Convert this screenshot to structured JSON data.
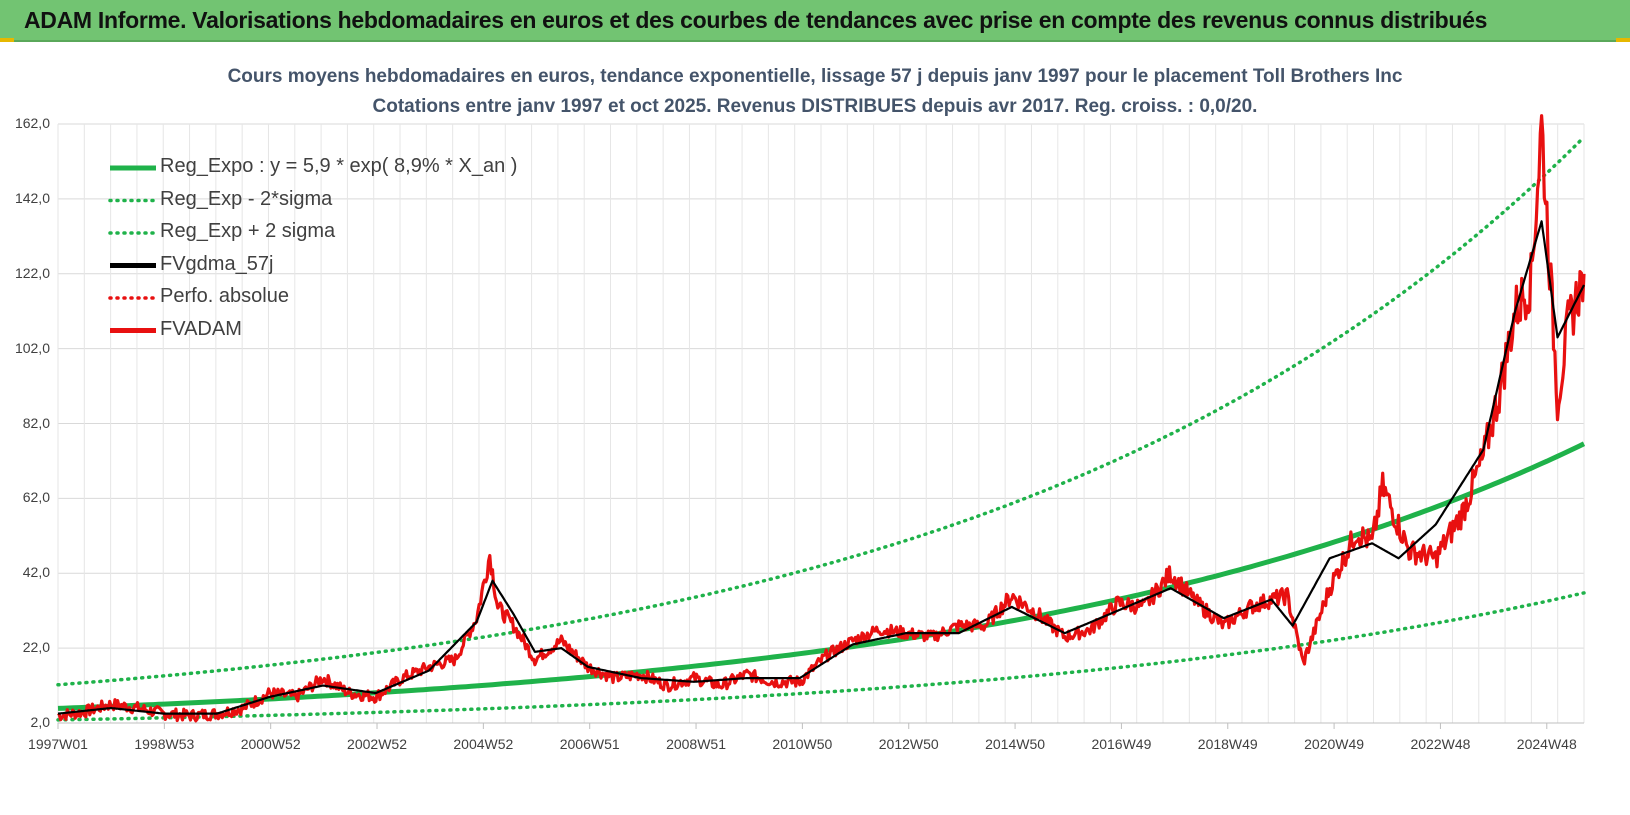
{
  "header": {
    "title": "ADAM Informe. Valorisations hebdomadaires en euros et des courbes de tendances avec prise en compte des revenus connus distribués"
  },
  "colors": {
    "header_bg": "#72c472",
    "green": "#1fb24a",
    "black": "#000000",
    "red": "#e81010"
  },
  "chart_data": {
    "type": "line",
    "title": "Cours moyens hebdomadaires en euros, tendance exponentielle, lissage 57 j depuis janv 1997 pour le placement Toll Brothers Inc",
    "subtitle": "Cotations entre janv 1997 et oct 2025. Revenus DISTRIBUES depuis avr 2017. Reg. croiss. : 0,0/20.",
    "ylim": [
      2.0,
      162.0
    ],
    "xlim": [
      1997.0,
      2025.8
    ],
    "yticks": [
      "2,0",
      "22,0",
      "42,0",
      "62,0",
      "82,0",
      "102,0",
      "122,0",
      "142,0",
      "162,0"
    ],
    "xticks": [
      "1997W01",
      "1998W53",
      "2000W52",
      "2002W52",
      "2004W52",
      "2006W51",
      "2008W51",
      "2010W50",
      "2012W50",
      "2014W50",
      "2016W49",
      "2018W49",
      "2020W49",
      "2022W48",
      "2024W48"
    ],
    "legend": [
      {
        "label": "Reg_Expo : y = 5,9 * exp( 8,9% *  X_an )",
        "style": "solid",
        "color": "#1fb24a"
      },
      {
        "label": "Reg_Exp - 2*sigma",
        "style": "dotted",
        "color": "#1fb24a"
      },
      {
        "label": "Reg_Exp + 2 sigma",
        "style": "dotted",
        "color": "#1fb24a"
      },
      {
        "label": "FVgdma_57j",
        "style": "solid",
        "color": "#000000"
      },
      {
        "label": "Perfo. absolue",
        "style": "dotted",
        "color": "#e81010"
      },
      {
        "label": "FVADAM",
        "style": "solid",
        "color": "#e81010"
      }
    ],
    "regression": {
      "a": 5.9,
      "rate": 0.089,
      "x0": 1997.0,
      "lower_factor": 0.48,
      "upper_factor": 2.07
    },
    "series": [
      {
        "name": "FVADAM",
        "x": [
          1997.0,
          1997.5,
          1998.0,
          1998.5,
          1999.0,
          1999.5,
          2000.0,
          2000.5,
          2001.0,
          2001.5,
          2002.0,
          2002.5,
          2003.0,
          2003.5,
          2004.0,
          2004.5,
          2004.9,
          2005.15,
          2005.3,
          2005.6,
          2006.0,
          2006.5,
          2007.0,
          2007.5,
          2008.0,
          2008.5,
          2009.0,
          2009.5,
          2010.0,
          2010.5,
          2011.0,
          2011.5,
          2012.0,
          2012.5,
          2013.0,
          2013.5,
          2014.0,
          2014.5,
          2015.0,
          2015.5,
          2016.0,
          2016.5,
          2017.0,
          2017.5,
          2018.0,
          2018.5,
          2019.0,
          2019.5,
          2019.9,
          2020.2,
          2020.5,
          2021.0,
          2021.5,
          2021.8,
          2022.0,
          2022.5,
          2023.0,
          2023.5,
          2023.9,
          2024.2,
          2024.5,
          2024.8,
          2025.0,
          2025.3,
          2025.5,
          2025.8
        ],
        "values": [
          4.0,
          5.0,
          7.0,
          6.0,
          4.5,
          4.0,
          4.5,
          6.0,
          10.0,
          9.0,
          14.0,
          10.0,
          9.0,
          14.0,
          17.0,
          19.0,
          30.0,
          47.0,
          33.0,
          28.0,
          19.0,
          24.0,
          17.0,
          14.0,
          15.0,
          12.0,
          14.0,
          12.0,
          15.0,
          13.0,
          13.0,
          20.0,
          24.0,
          27.0,
          26.0,
          25.0,
          28.0,
          28.0,
          36.0,
          31.0,
          25.0,
          27.0,
          34.0,
          33.0,
          42.0,
          34.0,
          28.0,
          33.0,
          35.0,
          36.0,
          18.0,
          38.0,
          53.0,
          50.0,
          65.0,
          48.0,
          46.0,
          58.0,
          73.0,
          90.0,
          112.0,
          120.0,
          162.0,
          88.0,
          108.0,
          122.0
        ]
      },
      {
        "name": "FVgdma_57j",
        "x": [
          1997.0,
          1998.0,
          1999.0,
          2000.0,
          2001.0,
          2002.0,
          2003.0,
          2004.0,
          2004.9,
          2005.2,
          2005.6,
          2006.0,
          2006.5,
          2007.0,
          2008.0,
          2009.0,
          2010.0,
          2011.0,
          2012.0,
          2013.0,
          2014.0,
          2015.0,
          2016.0,
          2017.0,
          2018.0,
          2019.0,
          2019.9,
          2020.3,
          2021.0,
          2021.8,
          2022.3,
          2023.0,
          2023.9,
          2024.5,
          2025.0,
          2025.3,
          2025.8
        ],
        "values": [
          4.5,
          6.0,
          4.5,
          4.5,
          9.0,
          12.0,
          10.0,
          16.0,
          29.0,
          40.0,
          31.0,
          21.0,
          22.0,
          17.0,
          14.0,
          13.0,
          14.0,
          14.0,
          23.0,
          26.0,
          26.0,
          33.0,
          26.0,
          32.0,
          38.0,
          30.0,
          35.0,
          28.0,
          46.0,
          50.0,
          46.0,
          55.0,
          75.0,
          112.0,
          136.0,
          105.0,
          119.0
        ]
      }
    ]
  }
}
